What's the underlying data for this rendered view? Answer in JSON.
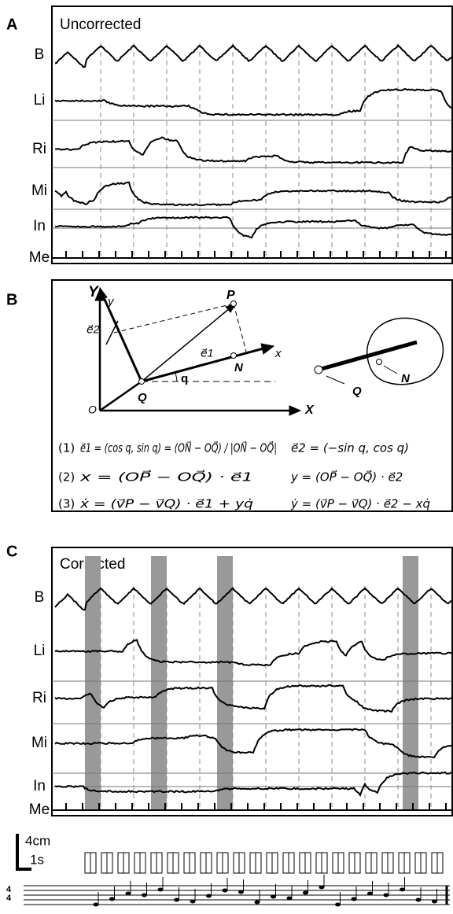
{
  "panels": [
    {
      "letter": "A",
      "title": "Uncorrected",
      "traces": [
        "B",
        "Li",
        "Ri",
        "Mi",
        "In",
        "Me"
      ]
    },
    {
      "letter": "B",
      "diagram": {
        "Y": "Y",
        "y": "y",
        "P": "P",
        "e2": "e⃗2",
        "e1": "e⃗1",
        "x": "x",
        "N": "N",
        "q": "q",
        "Q": "Q",
        "O": "O",
        "X": "X",
        "violin_Q": "Q",
        "violin_N": "N"
      },
      "equations": [
        {
          "number": "(1)",
          "left": "e⃗1 = (cos q, sin q) = (ON⃗ − OQ⃗) / |ON⃗ − OQ⃗|",
          "right": "e⃗2 = (−sin q, cos q)"
        },
        {
          "number": "(2)",
          "left": "x = (OP⃗ − OQ⃗) · e⃗1",
          "right": "y = (OP⃗ − OQ⃗) · e⃗2"
        },
        {
          "number": "(3)",
          "left": "ẋ = (v⃗P − v⃗Q) · e⃗1 + yq̇",
          "right": "ẏ = (v⃗P − v⃗Q) · e⃗2 − xq̇"
        }
      ]
    },
    {
      "letter": "C",
      "title": "Corrected",
      "traces": [
        "B",
        "Li",
        "Ri",
        "Mi",
        "In",
        "Me"
      ]
    }
  ],
  "scale": {
    "distance": "4cm",
    "time": "1s"
  },
  "time_signature": [
    "4",
    "4"
  ]
}
